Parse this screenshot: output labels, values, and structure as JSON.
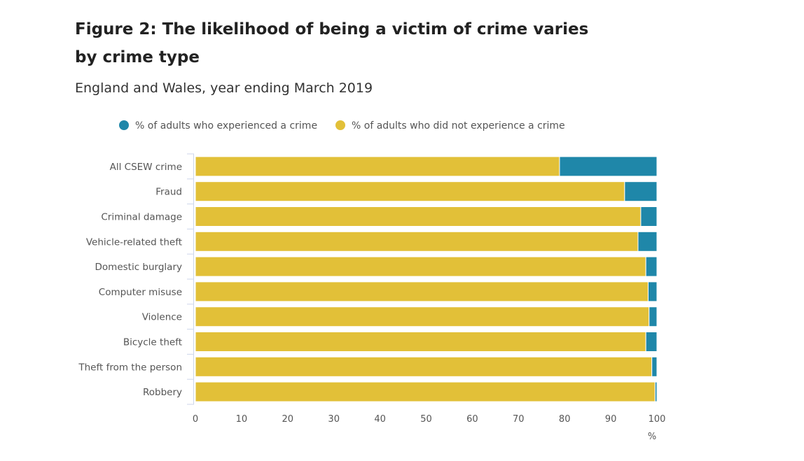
{
  "title": "Figure 2: The likelihood of being a victim of crime varies by crime type",
  "subtitle": "England and Wales, year ending March 2019",
  "chart_data": {
    "type": "bar",
    "orientation": "horizontal",
    "stacked": true,
    "categories": [
      "All CSEW crime",
      "Fraud",
      "Criminal damage",
      "Vehicle-related theft",
      "Domestic burglary",
      "Computer misuse",
      "Violence",
      "Bicycle theft",
      "Theft from the person",
      "Robbery"
    ],
    "series": [
      {
        "name": "% of adults who did not experience a crime",
        "color": "#e2c038",
        "values": [
          78.9,
          93.0,
          96.5,
          95.9,
          97.6,
          98.1,
          98.3,
          97.6,
          98.9,
          99.6
        ]
      },
      {
        "name": "% of adults who experienced a crime",
        "color": "#1f87a9",
        "values": [
          21.1,
          7.0,
          3.5,
          4.1,
          2.4,
          1.9,
          1.7,
          2.4,
          1.1,
          0.4
        ]
      }
    ],
    "legend_order": [
      "% of adults who experienced a crime",
      "% of adults who did not experience a crime"
    ],
    "xlim": [
      0,
      100
    ],
    "xticks": [
      0,
      10,
      20,
      30,
      40,
      50,
      60,
      70,
      80,
      90,
      100
    ],
    "xlabel": "%",
    "ylabel": "",
    "legend_position": "top",
    "grid": false
  }
}
